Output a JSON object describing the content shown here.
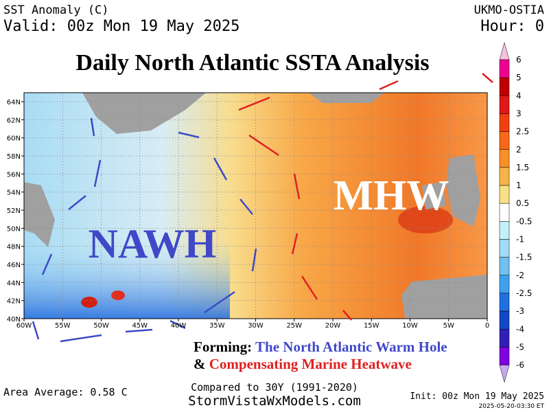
{
  "header": {
    "product": "SST Anomaly (C)",
    "valid": "Valid: 00z Mon 19 May 2025",
    "source": "UKMO-OSTIA",
    "hour": "Hour: 0"
  },
  "title": "Daily North Atlantic SSTA Analysis",
  "map": {
    "lon_labels": [
      "60W",
      "55W",
      "50W",
      "45W",
      "40W",
      "35W",
      "30W",
      "25W",
      "20W",
      "15W",
      "10W",
      "5W",
      "0"
    ],
    "lat_labels": [
      "40N",
      "42N",
      "44N",
      "46N",
      "48N",
      "50N",
      "52N",
      "54N",
      "56N",
      "58N",
      "60N",
      "62N",
      "64N"
    ],
    "annotations": {
      "warm": "MHW",
      "cold": "NAWH"
    }
  },
  "colorbar": {
    "ticks": [
      6,
      5,
      4,
      3,
      2.5,
      2,
      1.5,
      1,
      0.5,
      -0.5,
      -1,
      -1.5,
      -2,
      -2.5,
      -3,
      -4,
      -5,
      -6
    ],
    "colors": [
      "#f8c0e0",
      "#f00090",
      "#c00000",
      "#e01818",
      "#f04010",
      "#f86818",
      "#f89028",
      "#f8b448",
      "#f8e088",
      "#ffffff",
      "#c4f0f8",
      "#a0dcf8",
      "#70c0f0",
      "#40a0f0",
      "#2070e0",
      "#1048c8",
      "#3020b8",
      "#8000e0",
      "#c8a8f0"
    ]
  },
  "caption": {
    "line1_lead": "Forming:",
    "line1": "The North Atlantic Warm Hole",
    "line2_lead": "&",
    "line2": "Compensating Marine Heatwave"
  },
  "footer": {
    "average": "Area Average: 0.58 C",
    "baseline": "Compared to 30Y (1991-2020)",
    "site": "StormVistaWxModels.com",
    "init": "Init: 00z Mon 19 May 2025",
    "stamp": "2025-05-20-03:30 ET"
  }
}
